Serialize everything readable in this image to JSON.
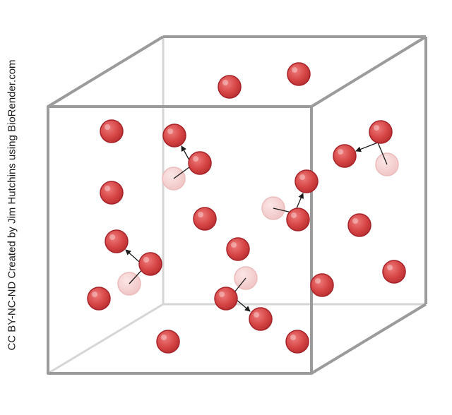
{
  "credit": "CC BY-NC-ND Created by Jim Hutchins using BioRender.com",
  "colors": {
    "particle": "#d64545",
    "particle_edge": "#9c1f22",
    "ghost": "#f3cccc",
    "ghost_edge": "#e8b3b3",
    "box_front": "#9b9b9b",
    "box_back": "#d4d4d4",
    "arrow": "#1a1a1a"
  },
  "icons": [
    "gas-particle-icon",
    "previous-position-ghost-icon",
    "motion-arrow-icon"
  ]
}
